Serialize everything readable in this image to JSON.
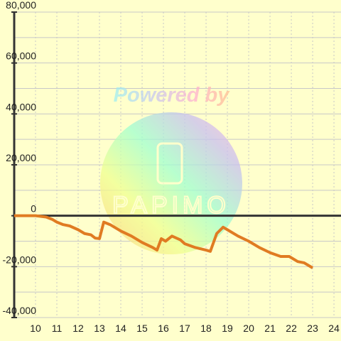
{
  "chart_data": {
    "type": "line",
    "x": [
      9,
      9.5,
      10,
      10.5,
      10.8,
      11,
      11.3,
      11.6,
      12,
      12.3,
      12.6,
      12.8,
      13,
      13.2,
      13.5,
      14,
      14.5,
      15,
      15.5,
      15.7,
      15.9,
      16.1,
      16.4,
      16.8,
      17,
      17.5,
      18,
      18.2,
      18.5,
      18.8,
      19,
      19.5,
      20,
      20.5,
      21,
      21.5,
      21.9,
      22.3,
      22.6,
      23
    ],
    "series": [
      {
        "color": "#e07b22",
        "values": [
          0,
          0,
          0,
          -500,
          -1500,
          -2500,
          -3500,
          -4000,
          -5500,
          -7000,
          -7500,
          -8800,
          -9000,
          -2500,
          -3500,
          -6000,
          -8000,
          -10500,
          -12500,
          -13500,
          -9000,
          -10000,
          -8000,
          -9500,
          -11000,
          -12500,
          -13500,
          -14000,
          -7000,
          -4500,
          -5500,
          -8000,
          -10000,
          -12500,
          -14500,
          -16000,
          -16000,
          -18000,
          -18500,
          -20500
        ]
      }
    ],
    "xlim": [
      9,
      24.33
    ],
    "xticks": [
      10,
      11,
      12,
      13,
      14,
      15,
      16,
      17,
      18,
      19,
      20,
      21,
      22,
      23,
      24
    ],
    "ylim": [
      -40000,
      80000
    ],
    "yticks": [
      {
        "value": -40000,
        "label": "-40,000"
      },
      {
        "value": -20000,
        "label": "-20,000"
      },
      0,
      {
        "value": 20000,
        "label": "20,000"
      },
      {
        "value": 40000,
        "label": "40,000"
      },
      {
        "value": 60000,
        "label": "60,000"
      },
      {
        "value": 80000,
        "label": "80,000"
      }
    ],
    "yminor_grid": [
      -30000,
      -10000,
      10000,
      30000,
      50000,
      70000
    ],
    "grid": true,
    "watermark": {
      "text": "Powered by",
      "logo": "PAPIMO"
    }
  }
}
